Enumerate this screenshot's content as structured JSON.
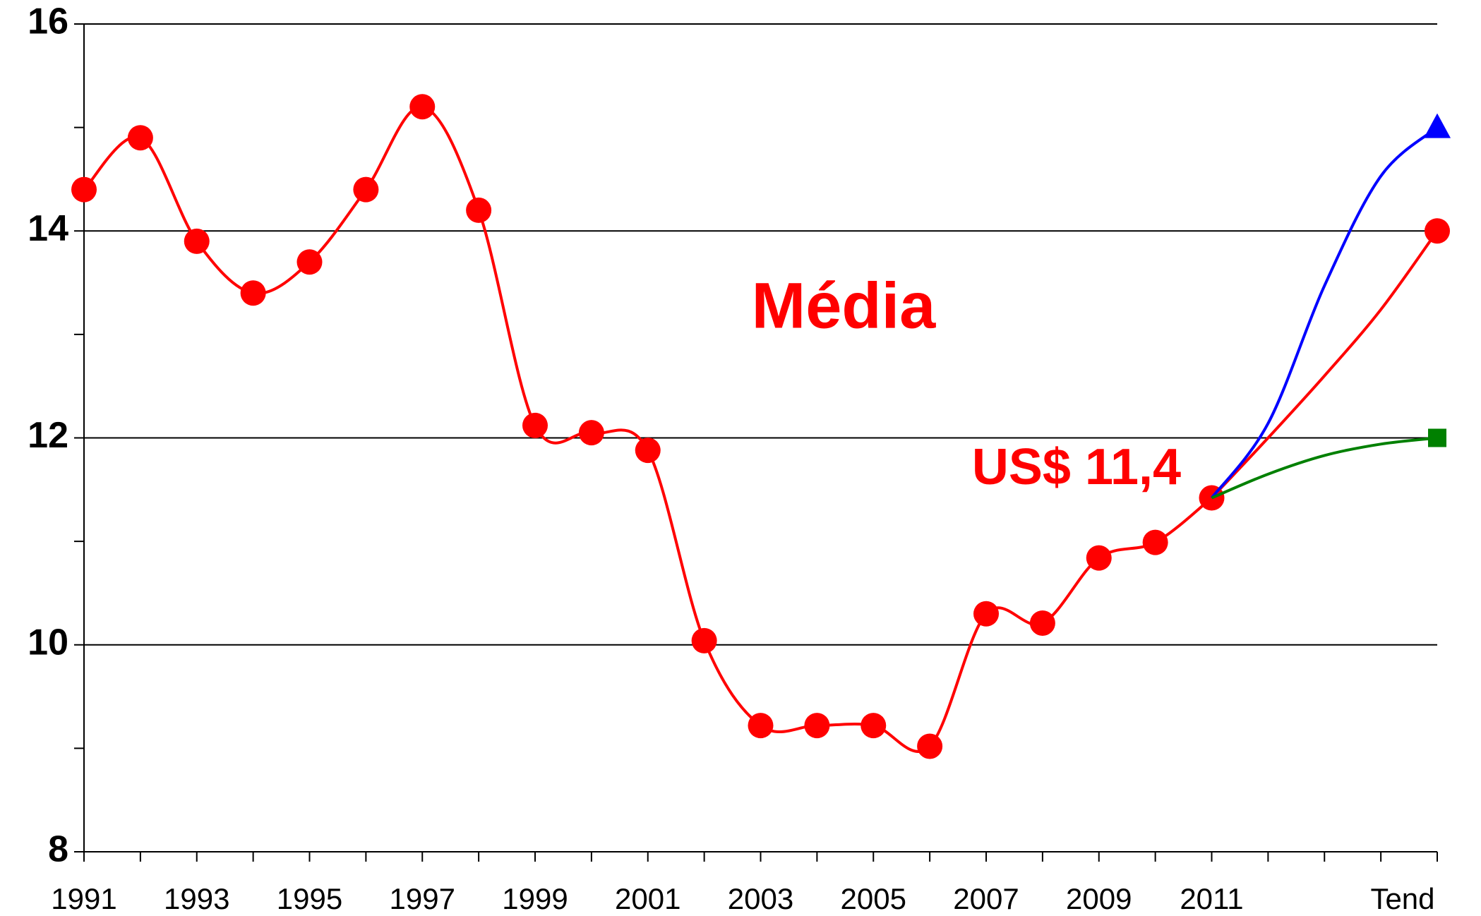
{
  "chart_data": {
    "type": "line",
    "categories": [
      "1991",
      null,
      "1993",
      null,
      "1995",
      null,
      "1997",
      null,
      "1999",
      null,
      "2001",
      null,
      "2003",
      null,
      "2005",
      null,
      "2007",
      null,
      "2009",
      null,
      "2011",
      null,
      null,
      null,
      "Tend"
    ],
    "series": [
      {
        "name": "Média",
        "color": "#ff0000",
        "marker": "circle",
        "values": [
          14.4,
          14.9,
          13.9,
          13.4,
          13.7,
          14.4,
          15.2,
          14.2,
          12.12,
          12.05,
          11.88,
          10.04,
          9.22,
          9.22,
          9.22,
          9.02,
          10.3,
          10.21,
          10.84,
          10.99,
          11.42,
          null,
          null,
          null,
          14.0
        ]
      },
      {
        "color": "#ff0000",
        "marker": "none",
        "values": [
          null,
          null,
          null,
          null,
          null,
          null,
          null,
          null,
          null,
          null,
          null,
          null,
          null,
          null,
          null,
          null,
          null,
          null,
          null,
          null,
          11.42,
          12.0,
          12.6,
          13.24,
          14.0
        ]
      },
      {
        "color": "#0000ff",
        "marker": "triangle",
        "values": [
          null,
          null,
          null,
          null,
          null,
          null,
          null,
          null,
          null,
          null,
          null,
          null,
          null,
          null,
          null,
          null,
          null,
          null,
          null,
          null,
          11.42,
          12.14,
          13.47,
          14.53,
          15.0
        ]
      },
      {
        "color": "#008000",
        "marker": "square",
        "values": [
          null,
          null,
          null,
          null,
          null,
          null,
          null,
          null,
          null,
          null,
          null,
          null,
          null,
          null,
          null,
          null,
          null,
          null,
          null,
          null,
          11.42,
          11.65,
          11.83,
          11.94,
          12.0
        ]
      }
    ],
    "ylim": [
      8,
      16
    ],
    "yticks": [
      8,
      10,
      12,
      14,
      16
    ],
    "yminor": [
      9,
      11,
      13,
      15
    ],
    "grid": true,
    "annotations": [
      {
        "text": "Média",
        "color": "#ff0000"
      },
      {
        "text": "US$ 11,4",
        "color": "#ff0000"
      }
    ]
  }
}
